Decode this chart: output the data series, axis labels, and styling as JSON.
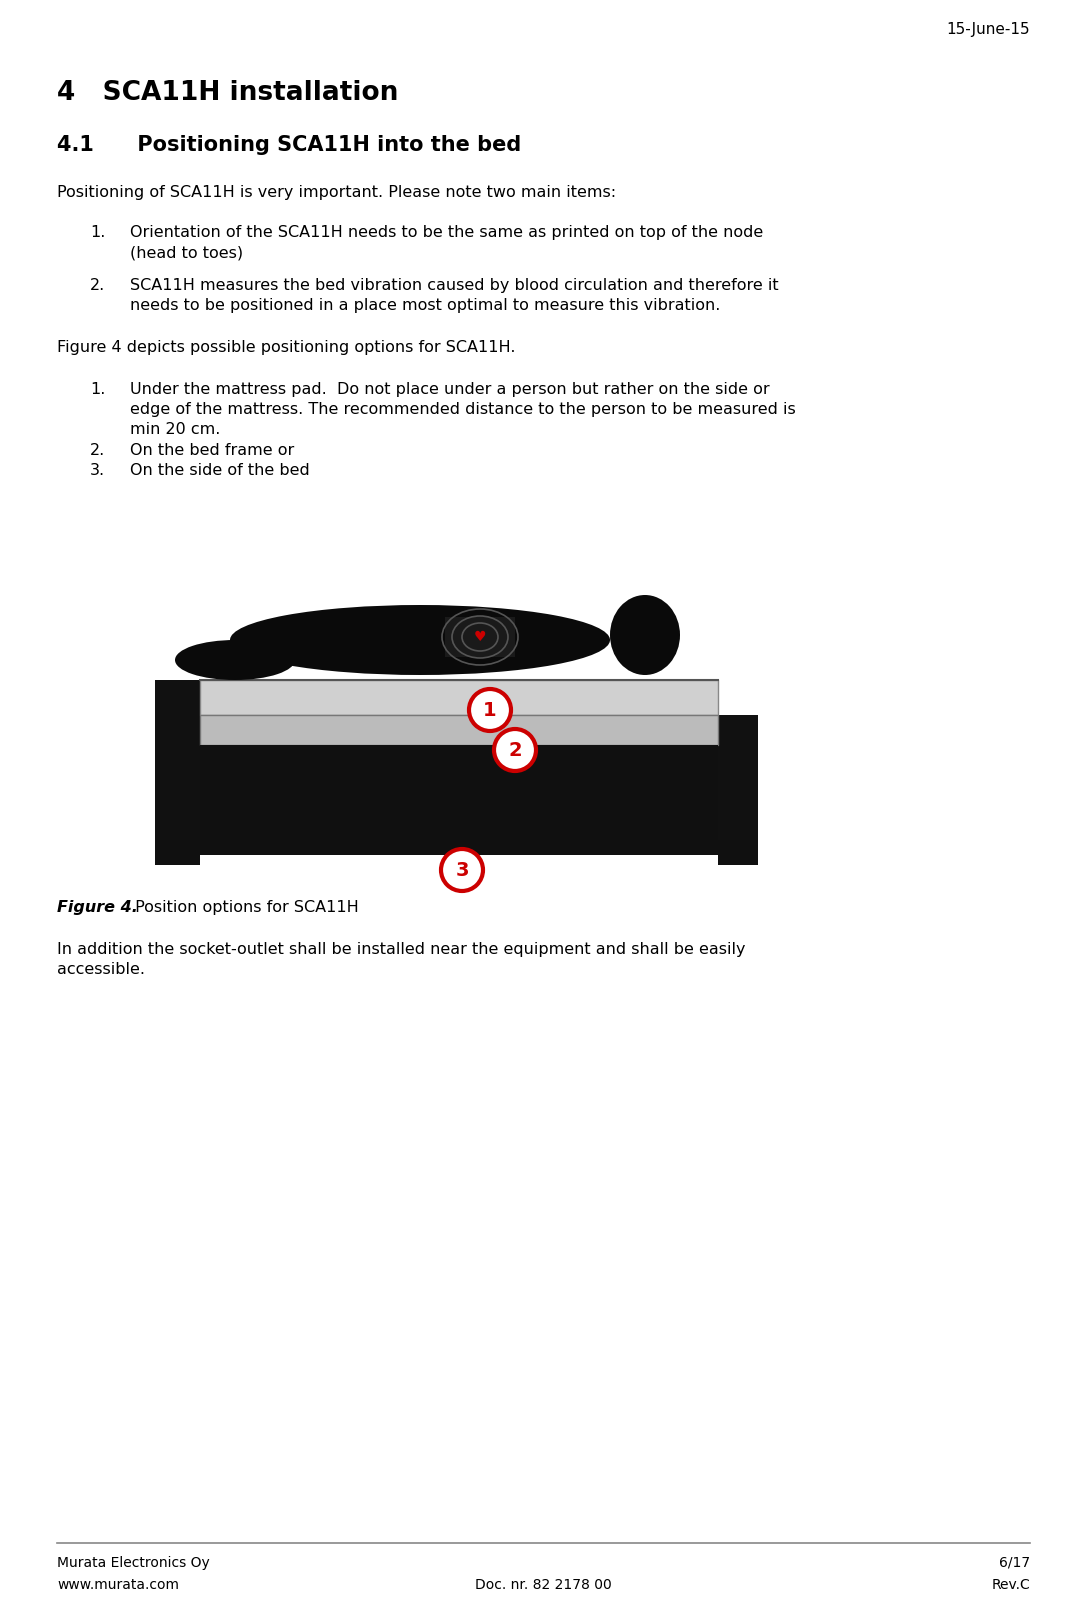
{
  "header_date": "15-June-15",
  "section_title": "4   SCA11H installation",
  "subsection_title": "4.1      Positioning SCA11H into the bed",
  "para1": "Positioning of SCA11H is very important. Please note two main items:",
  "list1_num1": "1.",
  "list1_text1a": "Orientation of the SCA11H needs to be the same as printed on top of the node",
  "list1_text1b": "(head to toes)",
  "list1_num2": "2.",
  "list1_text2a": "SCA11H measures the bed vibration caused by blood circulation and therefore it",
  "list1_text2b": "needs to be positioned in a place most optimal to measure this vibration.",
  "para2": "Figure 4 depicts possible positioning options for SCA11H.",
  "list2_num1": "1.",
  "list2_text1a": "Under the mattress pad.  Do not place under a person but rather on the side or",
  "list2_text1b": "edge of the mattress. The recommended distance to the person to be measured is",
  "list2_text1c": "min 20 cm.",
  "list2_num2": "2.",
  "list2_text2": "On the bed frame or",
  "list2_num3": "3.",
  "list2_text3": "On the side of the bed",
  "fig_caption_bold": "Figure 4.",
  "fig_caption_normal": " Position options for SCA11H",
  "para3a": "In addition the socket-outlet shall be installed near the equipment and shall be easily",
  "para3b": "accessible.",
  "footer_left1": "Murata Electronics Oy",
  "footer_left2": "www.murata.com",
  "footer_center": "Doc. nr. 82 2178 00",
  "footer_right1": "6/17",
  "footer_right2": "Rev.C",
  "bg_color": "#ffffff",
  "text_color": "#000000"
}
